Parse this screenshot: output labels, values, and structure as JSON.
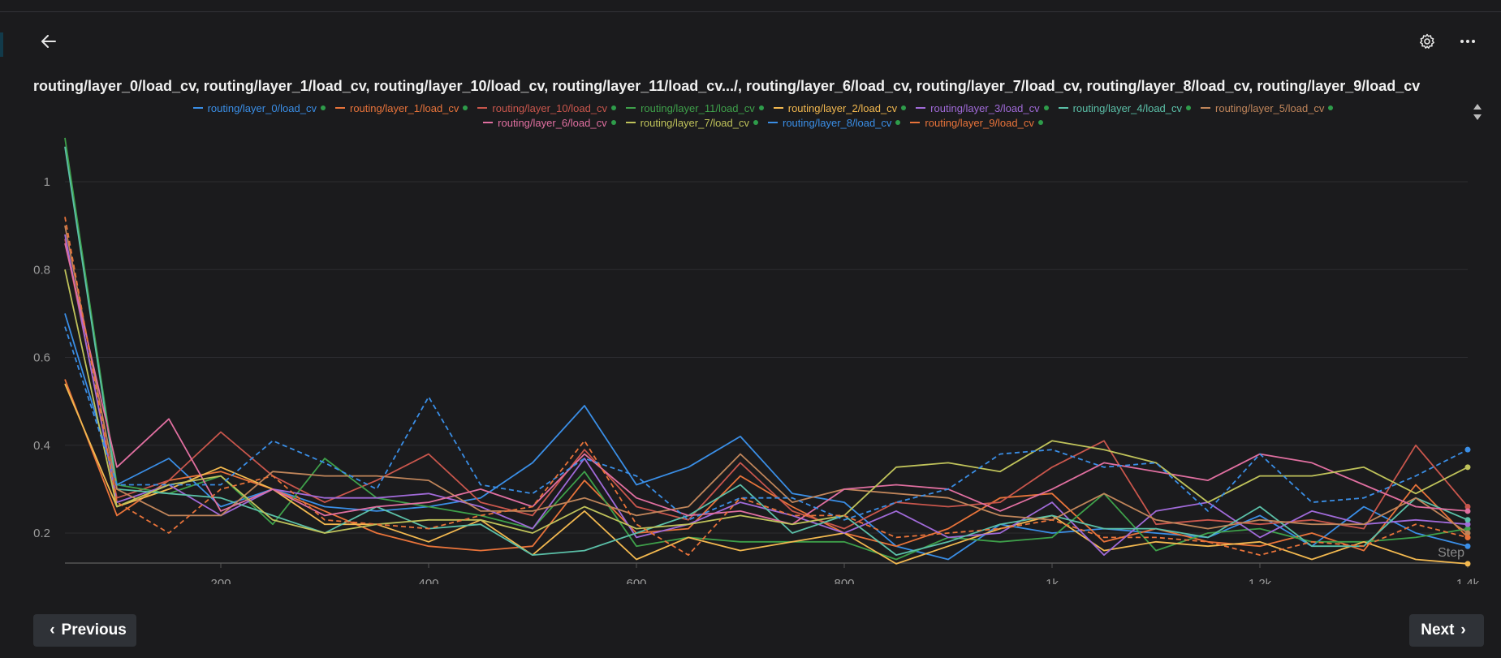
{
  "header": {
    "title": "routing/layer_0/load_cv, routing/layer_1/load_cv, routing/layer_10/load_cv, routing/layer_11/load_cv.../, routing/layer_6/load_cv, routing/layer_7/load_cv, routing/layer_8/load_cv, routing/layer_9/load_cv",
    "back_icon": "arrow-left-icon",
    "settings_icon": "gear-icon",
    "more_icon": "more-horizontal-icon"
  },
  "nav": {
    "previous_label": "Previous",
    "next_label": "Next"
  },
  "chart_data": {
    "type": "line",
    "title": "routing/layer_0/load_cv, routing/layer_1/load_cv, routing/layer_10/load_cv, routing/layer_11/load_cv.../, routing/layer_6/load_cv, routing/layer_7/load_cv, routing/layer_8/load_cv, routing/layer_9/load_cv",
    "xlabel": "Step",
    "ylabel": "",
    "xlim": [
      50,
      1400
    ],
    "ylim": [
      0.13,
      1.1
    ],
    "x_ticks": [
      200,
      400,
      600,
      800,
      1000,
      1200,
      1400
    ],
    "x_tick_labels": [
      "200",
      "400",
      "600",
      "800",
      "1k",
      "1.2k",
      "1.4k"
    ],
    "y_ticks": [
      0.2,
      0.4,
      0.6,
      0.8,
      1
    ],
    "y_tick_labels": [
      "0.2",
      "0.4",
      "0.6",
      "0.8",
      "1"
    ],
    "grid": true,
    "legend_position": "top",
    "x": [
      50,
      100,
      150,
      200,
      250,
      300,
      350,
      400,
      450,
      500,
      550,
      600,
      650,
      700,
      750,
      800,
      850,
      900,
      950,
      1000,
      1050,
      1100,
      1150,
      1200,
      1250,
      1300,
      1350,
      1400
    ],
    "series": [
      {
        "name": "routing/layer_0/load_cv",
        "color": "#3a8ee6",
        "dash": false,
        "values": [
          0.7,
          0.31,
          0.37,
          0.26,
          0.3,
          0.26,
          0.25,
          0.26,
          0.28,
          0.36,
          0.49,
          0.31,
          0.35,
          0.42,
          0.29,
          0.27,
          0.17,
          0.14,
          0.22,
          0.2,
          0.21,
          0.2,
          0.19,
          0.24,
          0.17,
          0.26,
          0.2,
          0.17
        ]
      },
      {
        "name": "routing/layer_1/load_cv",
        "color": "#e8733a",
        "dash": false,
        "values": [
          0.55,
          0.24,
          0.32,
          0.34,
          0.3,
          0.25,
          0.2,
          0.17,
          0.16,
          0.17,
          0.32,
          0.2,
          0.21,
          0.33,
          0.26,
          0.2,
          0.17,
          0.21,
          0.28,
          0.29,
          0.18,
          0.21,
          0.18,
          0.17,
          0.2,
          0.16,
          0.31,
          0.19
        ]
      },
      {
        "name": "routing/layer_10/load_cv",
        "color": "#c9564c",
        "dash": false,
        "values": [
          0.87,
          0.28,
          0.32,
          0.43,
          0.33,
          0.27,
          0.32,
          0.38,
          0.27,
          0.24,
          0.39,
          0.26,
          0.23,
          0.36,
          0.25,
          0.21,
          0.27,
          0.26,
          0.27,
          0.35,
          0.41,
          0.22,
          0.23,
          0.22,
          0.23,
          0.21,
          0.4,
          0.26
        ]
      },
      {
        "name": "routing/layer_11/load_cv",
        "color": "#3ea04a",
        "dash": false,
        "values": [
          1.1,
          0.31,
          0.29,
          0.33,
          0.22,
          0.37,
          0.28,
          0.26,
          0.24,
          0.21,
          0.34,
          0.17,
          0.19,
          0.18,
          0.18,
          0.18,
          0.14,
          0.19,
          0.18,
          0.19,
          0.29,
          0.16,
          0.2,
          0.21,
          0.18,
          0.18,
          0.19,
          0.21
        ]
      },
      {
        "name": "routing/layer_2/load_cv",
        "color": "#f2b84f",
        "dash": false,
        "values": [
          0.54,
          0.26,
          0.3,
          0.35,
          0.3,
          0.22,
          0.22,
          0.18,
          0.23,
          0.15,
          0.25,
          0.14,
          0.19,
          0.16,
          0.18,
          0.2,
          0.13,
          0.17,
          0.21,
          0.24,
          0.16,
          0.18,
          0.17,
          0.18,
          0.14,
          0.18,
          0.14,
          0.13
        ]
      },
      {
        "name": "routing/layer_3/load_cv",
        "color": "#a06ad8",
        "dash": false,
        "values": [
          0.88,
          0.27,
          0.31,
          0.24,
          0.3,
          0.28,
          0.28,
          0.29,
          0.26,
          0.21,
          0.37,
          0.19,
          0.22,
          0.27,
          0.24,
          0.2,
          0.25,
          0.19,
          0.2,
          0.27,
          0.15,
          0.25,
          0.27,
          0.19,
          0.25,
          0.22,
          0.23,
          0.22
        ]
      },
      {
        "name": "routing/layer_4/load_cv",
        "color": "#5bc0a8",
        "dash": false,
        "values": [
          1.08,
          0.3,
          0.29,
          0.28,
          0.24,
          0.2,
          0.26,
          0.21,
          0.22,
          0.15,
          0.16,
          0.2,
          0.24,
          0.31,
          0.2,
          0.24,
          0.15,
          0.18,
          0.22,
          0.24,
          0.21,
          0.21,
          0.19,
          0.26,
          0.17,
          0.17,
          0.28,
          0.23
        ]
      },
      {
        "name": "routing/layer_5/load_cv",
        "color": "#c0855a",
        "dash": false,
        "values": [
          0.9,
          0.3,
          0.24,
          0.24,
          0.34,
          0.33,
          0.33,
          0.32,
          0.25,
          0.25,
          0.28,
          0.24,
          0.26,
          0.38,
          0.27,
          0.3,
          0.29,
          0.28,
          0.24,
          0.23,
          0.29,
          0.23,
          0.21,
          0.23,
          0.22,
          0.22,
          0.28,
          0.2
        ]
      },
      {
        "name": "routing/layer_6/load_cv",
        "color": "#e06fa0",
        "dash": false,
        "values": [
          0.86,
          0.35,
          0.46,
          0.25,
          0.3,
          0.24,
          0.26,
          0.27,
          0.3,
          0.26,
          0.38,
          0.28,
          0.24,
          0.25,
          0.22,
          0.3,
          0.31,
          0.3,
          0.25,
          0.3,
          0.36,
          0.34,
          0.32,
          0.38,
          0.36,
          0.31,
          0.26,
          0.25
        ]
      },
      {
        "name": "routing/layer_7/load_cv",
        "color": "#bfc25a",
        "dash": false,
        "values": [
          0.8,
          0.26,
          0.31,
          0.33,
          0.23,
          0.2,
          0.22,
          0.23,
          0.23,
          0.2,
          0.26,
          0.21,
          0.22,
          0.24,
          0.22,
          0.24,
          0.35,
          0.36,
          0.34,
          0.41,
          0.39,
          0.36,
          0.27,
          0.33,
          0.33,
          0.35,
          0.29,
          0.35
        ]
      },
      {
        "name": "routing/layer_8/load_cv",
        "color": "#3a8ee6",
        "dash": true,
        "values": [
          0.67,
          0.31,
          0.31,
          0.31,
          0.41,
          0.36,
          0.3,
          0.51,
          0.31,
          0.29,
          0.37,
          0.33,
          0.23,
          0.28,
          0.28,
          0.23,
          0.27,
          0.3,
          0.38,
          0.39,
          0.35,
          0.36,
          0.25,
          0.38,
          0.27,
          0.28,
          0.33,
          0.39
        ]
      },
      {
        "name": "routing/layer_9/load_cv",
        "color": "#e8733a",
        "dash": true,
        "values": [
          0.92,
          0.27,
          0.2,
          0.3,
          0.33,
          0.23,
          0.22,
          0.21,
          0.24,
          0.26,
          0.41,
          0.22,
          0.15,
          0.28,
          0.24,
          0.24,
          0.19,
          0.2,
          0.21,
          0.23,
          0.19,
          0.19,
          0.18,
          0.15,
          0.18,
          0.17,
          0.22,
          0.19
        ]
      }
    ]
  }
}
